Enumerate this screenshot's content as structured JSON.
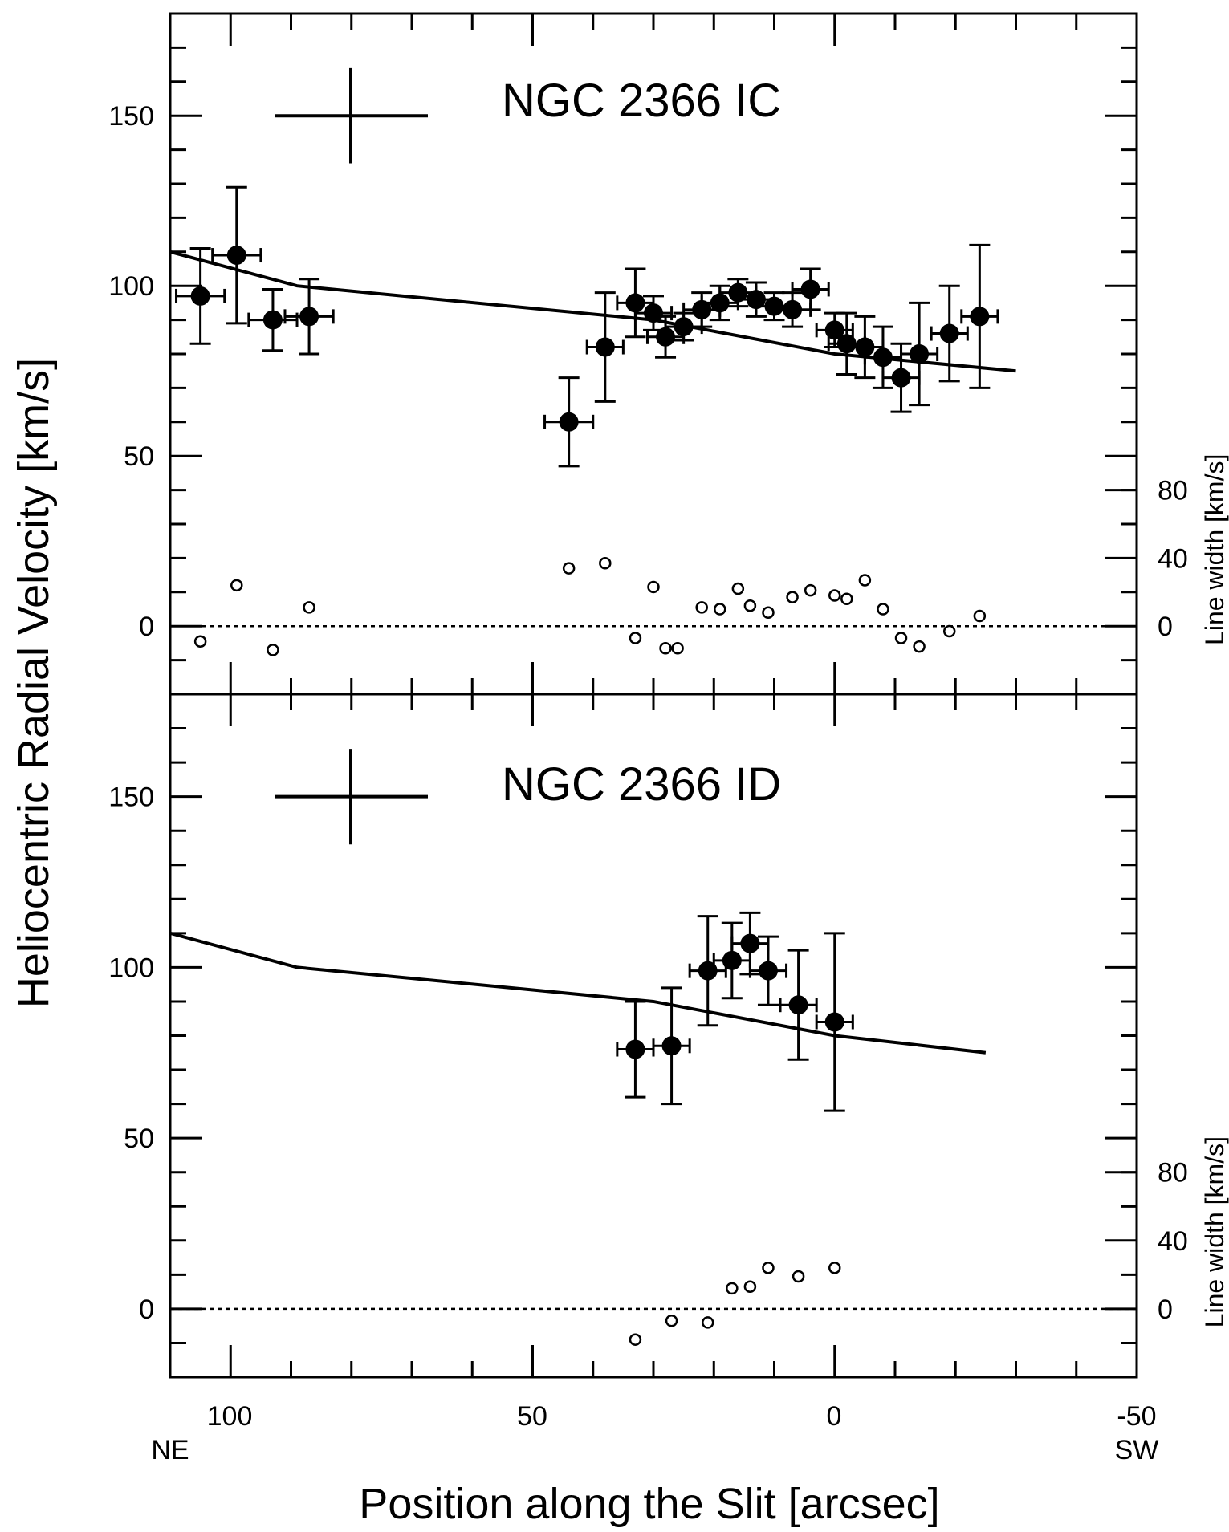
{
  "figure": {
    "xlabel": "Position along the Slit [arcsec]",
    "ylabel": "Heliocentric Radial Velocity [km/s]",
    "ylabel_right": "Line width [km/s]",
    "x_left_label": "NE",
    "x_right_label": "SW",
    "xlim": [
      110,
      -50
    ],
    "x_ticks": [
      "100",
      "50",
      "0",
      "-50"
    ],
    "y_ticks": [
      "150",
      "100",
      "50",
      "0"
    ],
    "right_ticks": [
      "80",
      "40",
      "0"
    ]
  },
  "chart_data": [
    {
      "type": "scatter",
      "title": "NGC 2366 IC",
      "xlim": [
        110,
        -50
      ],
      "ylim": [
        -20,
        180
      ],
      "right_axis": {
        "label": "Line width [km/s]",
        "ticks": [
          0,
          40,
          80
        ],
        "zero_at_velocity": 0,
        "kms_per_velocity_unit": 2.0
      },
      "model_curve": {
        "x": [
          110,
          89,
          30,
          0,
          -30
        ],
        "y": [
          110,
          100,
          90,
          80,
          75
        ]
      },
      "velocity": {
        "x": [
          105,
          99,
          93,
          87,
          44,
          38,
          33,
          30,
          28,
          25,
          22,
          19,
          16,
          13,
          10,
          7,
          4,
          0,
          -2,
          -5,
          -8,
          -11,
          -14,
          -19,
          -24
        ],
        "y": [
          97,
          109,
          90,
          91,
          60,
          82,
          95,
          92,
          85,
          88,
          93,
          95,
          98,
          96,
          94,
          93,
          99,
          87,
          83,
          82,
          79,
          73,
          80,
          86,
          91
        ],
        "yerr": [
          14,
          20,
          9,
          11,
          13,
          16,
          10,
          5,
          6,
          4,
          5,
          5,
          4,
          5,
          4,
          5,
          6,
          5,
          9,
          9,
          9,
          10,
          15,
          14,
          21
        ],
        "xerr": [
          4,
          4,
          4,
          4,
          4,
          3,
          3,
          3,
          3,
          3,
          3,
          3,
          3,
          3,
          3,
          3,
          3,
          3,
          3,
          3,
          3,
          3,
          3,
          3,
          3
        ]
      },
      "line_width": {
        "x": [
          105,
          99,
          93,
          87,
          44,
          38,
          33,
          30,
          28,
          26,
          22,
          19,
          16,
          14,
          11,
          7,
          4,
          0,
          -2,
          -5,
          -8,
          -11,
          -14,
          -19,
          -24
        ],
        "y": [
          -9,
          24,
          -14,
          11,
          34,
          37,
          -7,
          23,
          -13,
          -13,
          11,
          10,
          22,
          12,
          8,
          17,
          21,
          18,
          16,
          27,
          10,
          -7,
          -12,
          -3,
          6
        ]
      }
    },
    {
      "type": "scatter",
      "title": "NGC 2366 ID",
      "xlim": [
        110,
        -50
      ],
      "ylim": [
        -20,
        180
      ],
      "right_axis": {
        "label": "Line width [km/s]",
        "ticks": [
          0,
          40,
          80
        ],
        "zero_at_velocity": 0,
        "kms_per_velocity_unit": 2.0
      },
      "model_curve": {
        "x": [
          110,
          89,
          30,
          0,
          -25
        ],
        "y": [
          110,
          100,
          90,
          80,
          75
        ]
      },
      "velocity": {
        "x": [
          33,
          27,
          21,
          17,
          14,
          11,
          6,
          0
        ],
        "y": [
          76,
          77,
          99,
          102,
          107,
          99,
          89,
          84
        ],
        "yerr": [
          14,
          17,
          16,
          11,
          9,
          10,
          16,
          26
        ],
        "xerr": [
          3,
          3,
          3,
          3,
          3,
          3,
          3,
          3
        ]
      },
      "line_width": {
        "x": [
          33,
          27,
          21,
          17,
          14,
          11,
          6,
          0
        ],
        "y": [
          -18,
          -7,
          -8,
          12,
          13,
          24,
          19,
          24
        ]
      }
    }
  ]
}
